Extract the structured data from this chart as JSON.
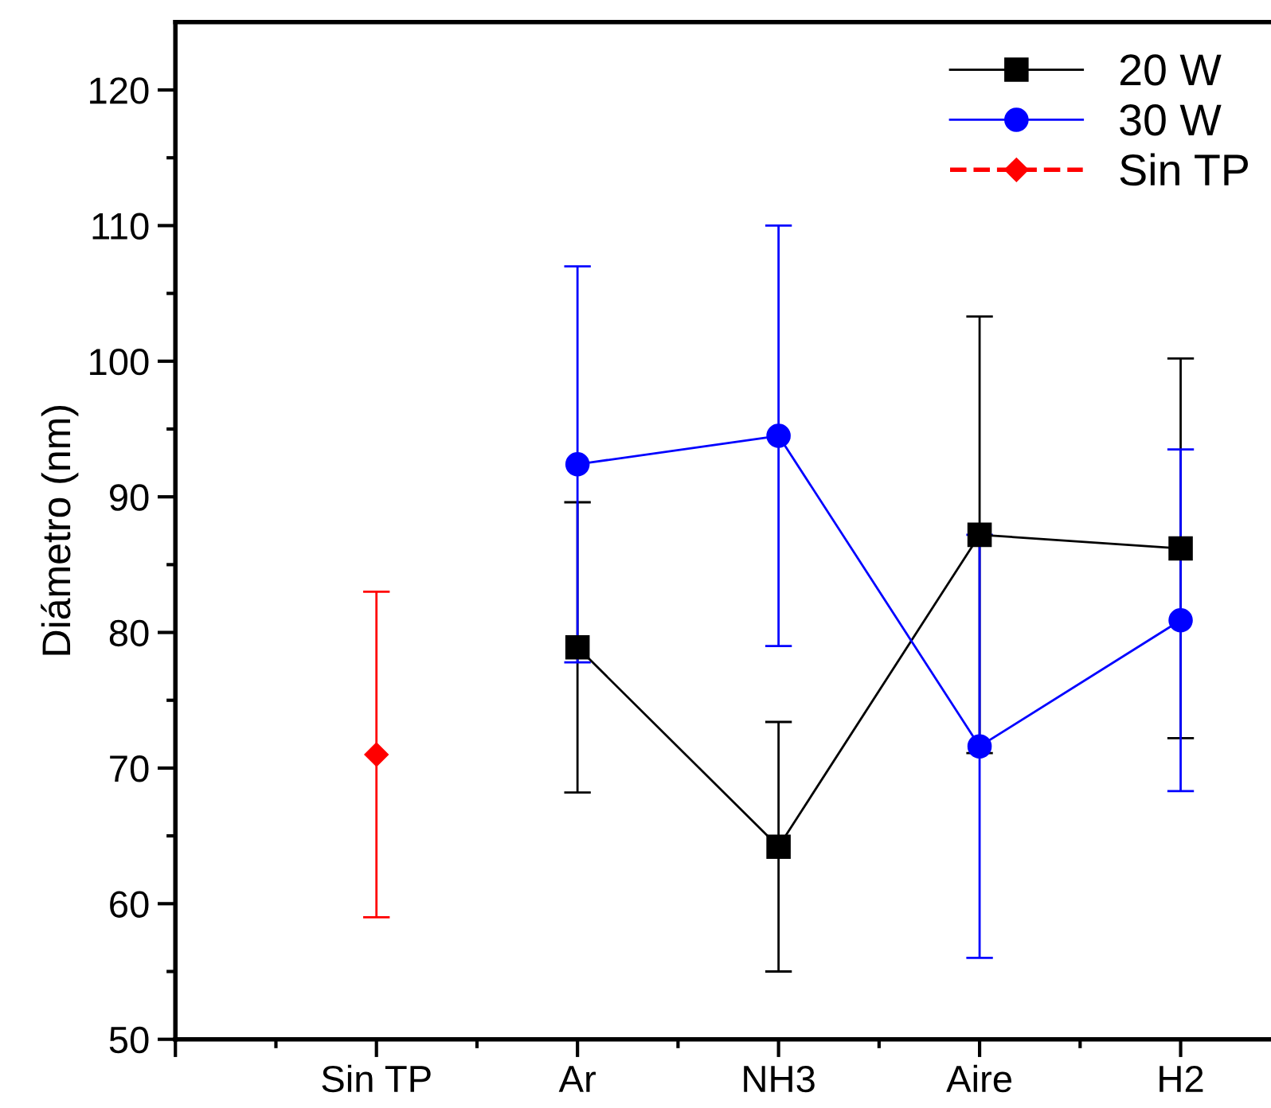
{
  "chart_data": {
    "type": "line",
    "ylabel": "Diámetro (nm)",
    "categories": [
      null,
      "Sin TP",
      "Ar",
      "NH3",
      "Aire",
      "H2"
    ],
    "ylim": [
      50,
      125
    ],
    "yticks": [
      50,
      60,
      70,
      80,
      90,
      100,
      110,
      120
    ],
    "grid": false,
    "legend": "top right",
    "series": [
      {
        "name": "20 W",
        "color": "#000000",
        "marker": "square",
        "line_style": "solid",
        "values": [
          null,
          null,
          78.9,
          64.2,
          87.2,
          86.2
        ],
        "errors": [
          null,
          null,
          10.7,
          9.2,
          16.1,
          14.0
        ]
      },
      {
        "name": "30 W",
        "color": "#0000ff",
        "marker": "circle",
        "line_style": "solid",
        "values": [
          null,
          null,
          92.4,
          94.5,
          71.6,
          80.9
        ],
        "errors": [
          null,
          null,
          14.6,
          15.5,
          15.6,
          12.6
        ]
      },
      {
        "name": "Sin TP",
        "color": "#ff0000",
        "marker": "diamond",
        "line_style": "dashed",
        "values": [
          null,
          71.0,
          null,
          null,
          null,
          null
        ],
        "errors": [
          null,
          12.0,
          null,
          null,
          null,
          null
        ]
      }
    ]
  }
}
